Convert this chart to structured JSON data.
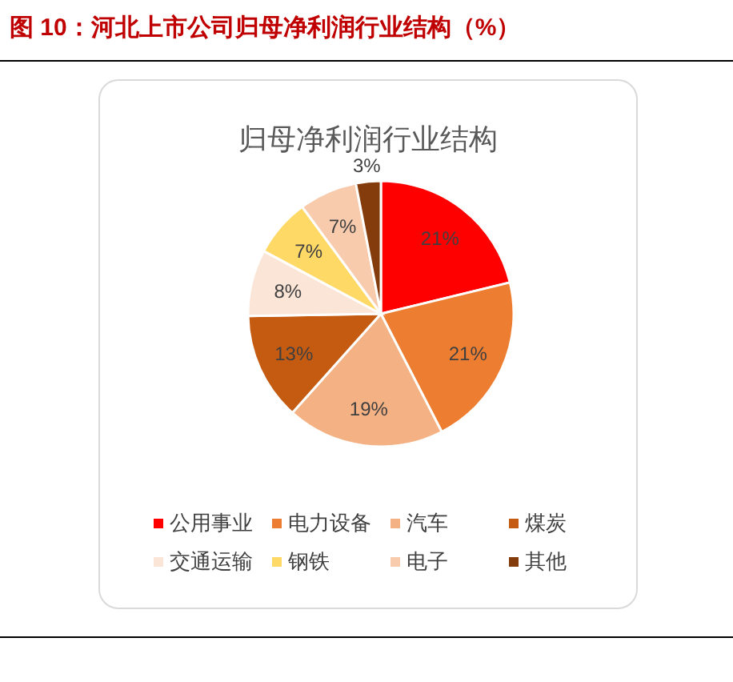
{
  "chart_data": {
    "type": "pie",
    "title": "图 10：河北上市公司归母净利润行业结构（%）",
    "subtitle": "归母净利润行业结构",
    "categories": [
      "公用事业",
      "电力设备",
      "汽车",
      "煤炭",
      "交通运输",
      "钢铁",
      "电子",
      "其他"
    ],
    "values": [
      21,
      21,
      19,
      13,
      8,
      7,
      7,
      3
    ],
    "colors": [
      "#ff0000",
      "#ed7d31",
      "#f4b183",
      "#c55a11",
      "#fbe5d6",
      "#ffd966",
      "#f8cbad",
      "#843c0c"
    ],
    "value_labels": [
      "21%",
      "21%",
      "19%",
      "13%",
      "8%",
      "7%",
      "7%",
      "3%"
    ],
    "legend": "bottom"
  }
}
